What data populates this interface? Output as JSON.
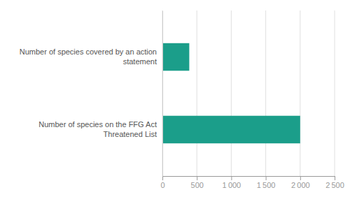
{
  "chart_data": {
    "type": "bar",
    "orientation": "horizontal",
    "categories": [
      "Number of species on the FFG Act\nThreatened List",
      "Number of species covered by an action\nstatement"
    ],
    "values": [
      2000,
      390
    ],
    "color": "#1b9e8a",
    "xlim": [
      0,
      2500
    ],
    "xticks": [
      0,
      500,
      {
        "value": 1000,
        "label": "1 000"
      },
      {
        "value": 1500,
        "label": "1 500"
      },
      {
        "value": 2000,
        "label": "2 000"
      },
      {
        "value": 2500,
        "label": "2 500"
      }
    ],
    "grid": true
  }
}
